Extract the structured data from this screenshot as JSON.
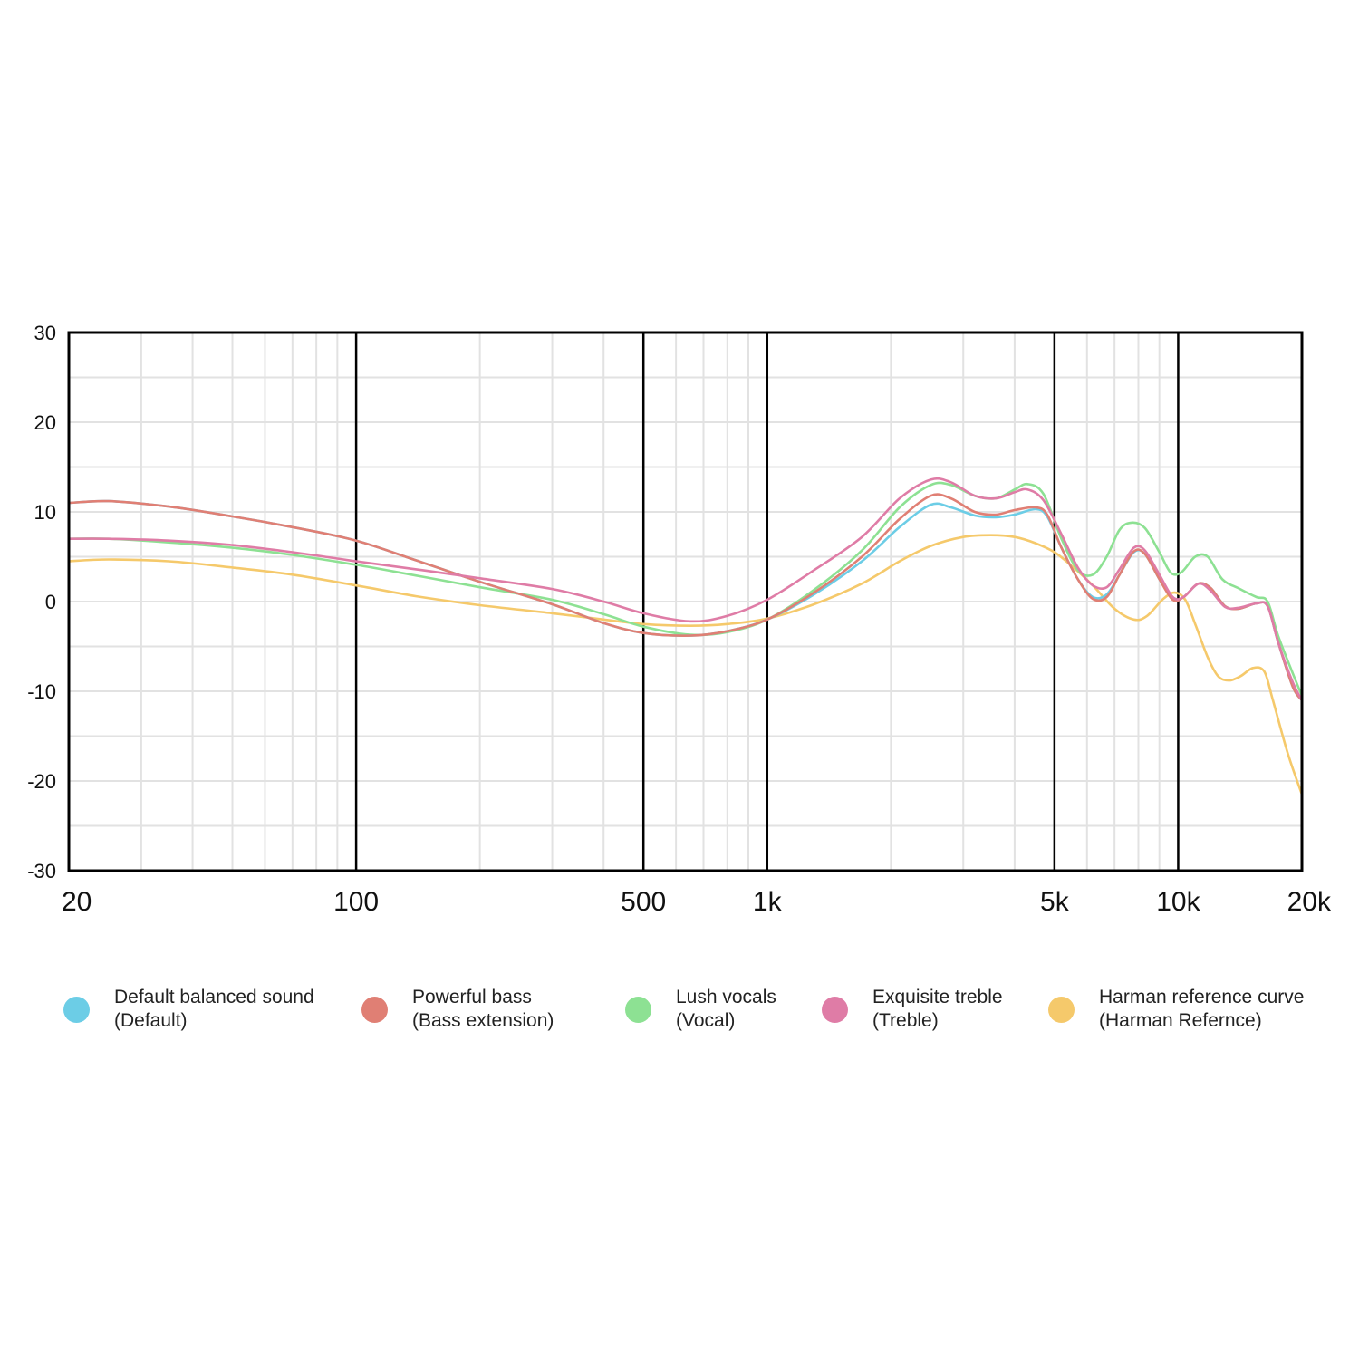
{
  "chart_data": {
    "type": "line",
    "title": "",
    "xlabel": "",
    "ylabel": "",
    "x_scale": "log",
    "xlim": [
      20,
      20000
    ],
    "ylim": [
      -30,
      30
    ],
    "grid": true,
    "legend_position": "bottom",
    "y_ticks": [
      "30",
      "20",
      "10",
      "0",
      "-10",
      "-20",
      "-30"
    ],
    "x_ticks": [
      {
        "value": 20,
        "label": "20"
      },
      {
        "value": 100,
        "label": "100"
      },
      {
        "value": 500,
        "label": "500"
      },
      {
        "value": 1000,
        "label": "1k"
      },
      {
        "value": 5000,
        "label": "5k"
      },
      {
        "value": 10000,
        "label": "10k"
      },
      {
        "value": 20000,
        "label": "20k"
      }
    ],
    "major_gridlines_x": [
      100,
      500,
      1000,
      5000,
      10000
    ],
    "series": [
      {
        "name": "Default balanced sound",
        "subtitle": "(Default)",
        "color": "#6ccde6",
        "points": [
          [
            20,
            11
          ],
          [
            25,
            11.2
          ],
          [
            35,
            10.6
          ],
          [
            50,
            9.5
          ],
          [
            70,
            8.3
          ],
          [
            100,
            6.8
          ],
          [
            140,
            4.6
          ],
          [
            200,
            2.2
          ],
          [
            300,
            -0.3
          ],
          [
            400,
            -2.4
          ],
          [
            500,
            -3.5
          ],
          [
            650,
            -3.8
          ],
          [
            800,
            -3.3
          ],
          [
            1000,
            -2.0
          ],
          [
            1300,
            0.8
          ],
          [
            1700,
            4.5
          ],
          [
            2100,
            8.3
          ],
          [
            2500,
            10.8
          ],
          [
            2800,
            10.5
          ],
          [
            3200,
            9.6
          ],
          [
            3600,
            9.4
          ],
          [
            4000,
            9.7
          ],
          [
            4500,
            10.3
          ],
          [
            4800,
            9.5
          ],
          [
            5200,
            6.0
          ],
          [
            5700,
            2.5
          ],
          [
            6200,
            0.5
          ],
          [
            6700,
            0.8
          ],
          [
            7200,
            3.0
          ],
          [
            7800,
            5.5
          ],
          [
            8300,
            5.3
          ],
          [
            9000,
            2.5
          ],
          [
            9700,
            0.3
          ],
          [
            10300,
            0.5
          ],
          [
            11200,
            2.0
          ],
          [
            12000,
            1.5
          ],
          [
            13000,
            -0.5
          ],
          [
            14000,
            -0.8
          ],
          [
            15500,
            -0.2
          ],
          [
            16500,
            -0.5
          ],
          [
            17500,
            -4.5
          ],
          [
            19000,
            -9.5
          ],
          [
            20000,
            -11
          ]
        ]
      },
      {
        "name": "Powerful bass",
        "subtitle": "(Bass extension)",
        "color": "#e07f74",
        "points": [
          [
            20,
            11
          ],
          [
            25,
            11.2
          ],
          [
            35,
            10.6
          ],
          [
            50,
            9.5
          ],
          [
            70,
            8.3
          ],
          [
            100,
            6.8
          ],
          [
            140,
            4.6
          ],
          [
            200,
            2.2
          ],
          [
            300,
            -0.3
          ],
          [
            400,
            -2.4
          ],
          [
            500,
            -3.5
          ],
          [
            650,
            -3.8
          ],
          [
            800,
            -3.3
          ],
          [
            1000,
            -2.0
          ],
          [
            1300,
            1.0
          ],
          [
            1700,
            5.0
          ],
          [
            2100,
            9.2
          ],
          [
            2500,
            11.8
          ],
          [
            2800,
            11.5
          ],
          [
            3200,
            10.0
          ],
          [
            3600,
            9.7
          ],
          [
            4000,
            10.2
          ],
          [
            4500,
            10.5
          ],
          [
            4800,
            9.7
          ],
          [
            5200,
            6.0
          ],
          [
            5700,
            2.5
          ],
          [
            6200,
            0.3
          ],
          [
            6700,
            0.5
          ],
          [
            7200,
            3.0
          ],
          [
            7800,
            5.6
          ],
          [
            8300,
            5.3
          ],
          [
            9000,
            2.5
          ],
          [
            9700,
            0.2
          ],
          [
            10300,
            0.5
          ],
          [
            11200,
            2.0
          ],
          [
            12000,
            1.5
          ],
          [
            13000,
            -0.5
          ],
          [
            14000,
            -0.8
          ],
          [
            15500,
            -0.2
          ],
          [
            16500,
            -0.5
          ],
          [
            17500,
            -4.5
          ],
          [
            19000,
            -9.5
          ],
          [
            20000,
            -11
          ]
        ]
      },
      {
        "name": "Lush vocals",
        "subtitle": "(Vocal)",
        "color": "#8de193",
        "points": [
          [
            20,
            7
          ],
          [
            25,
            7.0
          ],
          [
            35,
            6.6
          ],
          [
            50,
            6.0
          ],
          [
            70,
            5.2
          ],
          [
            100,
            4.1
          ],
          [
            140,
            2.9
          ],
          [
            200,
            1.6
          ],
          [
            300,
            0.2
          ],
          [
            400,
            -1.4
          ],
          [
            500,
            -2.8
          ],
          [
            650,
            -3.7
          ],
          [
            800,
            -3.4
          ],
          [
            1000,
            -2.0
          ],
          [
            1300,
            1.3
          ],
          [
            1700,
            5.7
          ],
          [
            2100,
            10.5
          ],
          [
            2500,
            13.0
          ],
          [
            2800,
            13.0
          ],
          [
            3200,
            11.8
          ],
          [
            3600,
            11.5
          ],
          [
            4000,
            12.5
          ],
          [
            4300,
            13.1
          ],
          [
            4700,
            12.0
          ],
          [
            5200,
            7.0
          ],
          [
            5700,
            3.5
          ],
          [
            6200,
            3.0
          ],
          [
            6700,
            5.0
          ],
          [
            7200,
            8.0
          ],
          [
            7700,
            8.8
          ],
          [
            8300,
            8.2
          ],
          [
            9000,
            5.5
          ],
          [
            9600,
            3.2
          ],
          [
            10200,
            3.3
          ],
          [
            11000,
            5.0
          ],
          [
            11800,
            5.0
          ],
          [
            12800,
            2.5
          ],
          [
            14000,
            1.5
          ],
          [
            15500,
            0.5
          ],
          [
            16500,
            0.0
          ],
          [
            17500,
            -3.8
          ],
          [
            19000,
            -8.0
          ],
          [
            20000,
            -10.5
          ]
        ]
      },
      {
        "name": "Exquisite treble",
        "subtitle": "(Treble)",
        "color": "#df7ca6",
        "points": [
          [
            20,
            7
          ],
          [
            25,
            7.0
          ],
          [
            35,
            6.8
          ],
          [
            50,
            6.3
          ],
          [
            70,
            5.5
          ],
          [
            100,
            4.5
          ],
          [
            140,
            3.6
          ],
          [
            200,
            2.6
          ],
          [
            300,
            1.4
          ],
          [
            400,
            0.0
          ],
          [
            500,
            -1.3
          ],
          [
            650,
            -2.2
          ],
          [
            800,
            -1.6
          ],
          [
            1000,
            0.2
          ],
          [
            1300,
            3.5
          ],
          [
            1700,
            7.2
          ],
          [
            2100,
            11.5
          ],
          [
            2500,
            13.6
          ],
          [
            2800,
            13.3
          ],
          [
            3200,
            11.8
          ],
          [
            3600,
            11.5
          ],
          [
            4000,
            12.2
          ],
          [
            4300,
            12.5
          ],
          [
            4700,
            11.3
          ],
          [
            5200,
            7.5
          ],
          [
            5700,
            3.8
          ],
          [
            6200,
            1.8
          ],
          [
            6700,
            1.6
          ],
          [
            7200,
            3.6
          ],
          [
            7800,
            6.0
          ],
          [
            8300,
            5.7
          ],
          [
            9000,
            3.0
          ],
          [
            9700,
            0.5
          ],
          [
            10300,
            0.5
          ],
          [
            11200,
            2.0
          ],
          [
            12000,
            1.2
          ],
          [
            13000,
            -0.6
          ],
          [
            14000,
            -0.7
          ],
          [
            15500,
            -0.2
          ],
          [
            16500,
            -0.5
          ],
          [
            17500,
            -4.5
          ],
          [
            19000,
            -9.0
          ],
          [
            20000,
            -11
          ]
        ]
      },
      {
        "name": "Harman reference curve",
        "subtitle": "(Harman Refernce)",
        "color": "#f5c96b",
        "points": [
          [
            20,
            4.5
          ],
          [
            25,
            4.7
          ],
          [
            35,
            4.5
          ],
          [
            50,
            3.8
          ],
          [
            70,
            3.0
          ],
          [
            100,
            1.8
          ],
          [
            140,
            0.6
          ],
          [
            200,
            -0.4
          ],
          [
            300,
            -1.3
          ],
          [
            400,
            -2.0
          ],
          [
            500,
            -2.5
          ],
          [
            650,
            -2.7
          ],
          [
            800,
            -2.5
          ],
          [
            1000,
            -1.9
          ],
          [
            1300,
            -0.3
          ],
          [
            1700,
            2.0
          ],
          [
            2100,
            4.5
          ],
          [
            2500,
            6.2
          ],
          [
            3000,
            7.2
          ],
          [
            3500,
            7.4
          ],
          [
            4000,
            7.2
          ],
          [
            4500,
            6.5
          ],
          [
            5000,
            5.5
          ],
          [
            5500,
            4.0
          ],
          [
            6200,
            1.8
          ],
          [
            7000,
            -0.8
          ],
          [
            7800,
            -2.0
          ],
          [
            8400,
            -1.6
          ],
          [
            9200,
            0.3
          ],
          [
            9800,
            1.0
          ],
          [
            10400,
            0.2
          ],
          [
            11000,
            -2.5
          ],
          [
            11800,
            -6.2
          ],
          [
            12500,
            -8.3
          ],
          [
            13300,
            -8.8
          ],
          [
            14200,
            -8.3
          ],
          [
            15200,
            -7.4
          ],
          [
            16200,
            -7.8
          ],
          [
            17000,
            -11.0
          ],
          [
            18500,
            -17.0
          ],
          [
            20000,
            -21.5
          ]
        ]
      }
    ]
  }
}
